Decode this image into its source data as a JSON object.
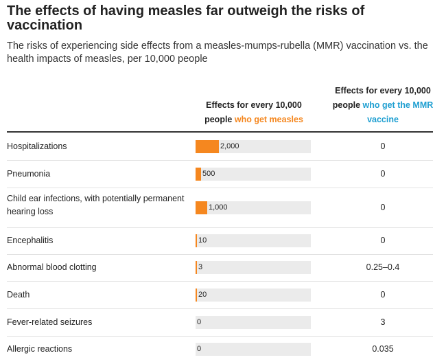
{
  "title": "The effects of having measles far outweigh the risks of vaccination",
  "subtitle": "The risks of experiencing side effects from a measles-mumps-rubella (MMR) vaccination vs. the health impacts of measles, per 10,000 people",
  "columns": {
    "measles": {
      "lead": "Effects for every 10,000 people ",
      "highlight": "who get measles",
      "highlight_color": "#f5871f"
    },
    "vaccine": {
      "lead": "Effects for every 10,000 people ",
      "highlight": "who get the MMR vaccine",
      "highlight_color": "#1f9fd1"
    }
  },
  "chart_data": {
    "type": "table",
    "bar_color": "#f5871f",
    "bar_max": 10000,
    "categories": [
      "Hospitalizations",
      "Pneumonia",
      "Child ear infections, with potentially permanent hearing loss",
      "Encephalitis",
      "Abnormal blood clotting",
      "Death",
      "Fever-related seizures",
      "Allergic reactions"
    ],
    "rows": [
      {
        "label": "Hospitalizations",
        "measles": 2000,
        "measles_label": "2,000",
        "vaccine": "0"
      },
      {
        "label": "Pneumonia",
        "measles": 500,
        "measles_label": "500",
        "vaccine": "0"
      },
      {
        "label": "Child ear infections, with potentially permanent hearing loss",
        "measles": 1000,
        "measles_label": "1,000",
        "vaccine": "0"
      },
      {
        "label": "Encephalitis",
        "measles": 10,
        "measles_label": "10",
        "vaccine": "0"
      },
      {
        "label": "Abnormal blood clotting",
        "measles": 3,
        "measles_label": "3",
        "vaccine": "0.25–0.4"
      },
      {
        "label": "Death",
        "measles": 20,
        "measles_label": "20",
        "vaccine": "0"
      },
      {
        "label": "Fever-related seizures",
        "measles": 0,
        "measles_label": "0",
        "vaccine": "3"
      },
      {
        "label": "Allergic reactions",
        "measles": 0,
        "measles_label": "0",
        "vaccine": "0.035"
      }
    ]
  }
}
